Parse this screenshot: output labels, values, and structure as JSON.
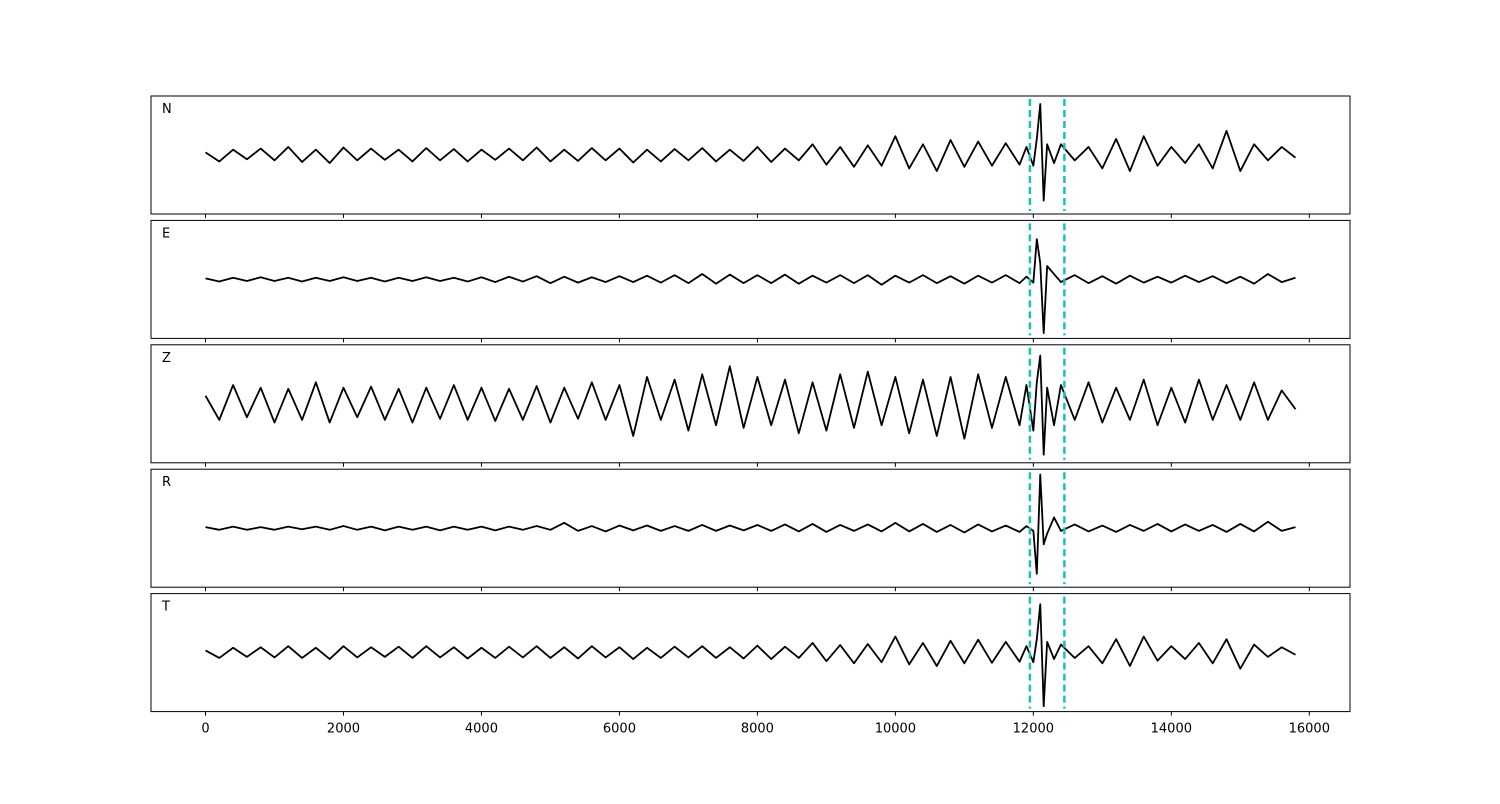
{
  "chart_data": {
    "type": "line",
    "subplots": "stacked",
    "x": [
      0,
      200,
      400,
      600,
      800,
      1000,
      1200,
      1400,
      1600,
      1800,
      2000,
      2200,
      2400,
      2600,
      2800,
      3000,
      3200,
      3400,
      3600,
      3800,
      4000,
      4200,
      4400,
      4600,
      4800,
      5000,
      5200,
      5400,
      5600,
      5800,
      6000,
      6200,
      6400,
      6600,
      6800,
      7000,
      7200,
      7400,
      7600,
      7800,
      8000,
      8200,
      8400,
      8600,
      8800,
      9000,
      9200,
      9400,
      9600,
      9800,
      10000,
      10200,
      10400,
      10600,
      10800,
      11000,
      11200,
      11400,
      11600,
      11800,
      11900,
      12000,
      12050,
      12100,
      12150,
      12200,
      12300,
      12400,
      12600,
      12800,
      13000,
      13200,
      13400,
      13600,
      13800,
      14000,
      14200,
      14400,
      14600,
      14800,
      15000,
      15200,
      15400,
      15600,
      15800
    ],
    "xlim": [
      -790,
      16590
    ],
    "xticks": [
      0,
      2000,
      4000,
      6000,
      8000,
      10000,
      12000,
      14000,
      16000
    ],
    "ylim": [
      -1.1,
      1.1
    ],
    "vlines": [
      11950,
      12450
    ],
    "vline_color": "#17c3b2",
    "series": [
      {
        "name": "N",
        "color": "#000000",
        "values": [
          0.05,
          -0.12,
          0.1,
          -0.08,
          0.12,
          -0.1,
          0.15,
          -0.13,
          0.1,
          -0.15,
          0.14,
          -0.1,
          0.12,
          -0.09,
          0.1,
          -0.12,
          0.13,
          -0.1,
          0.11,
          -0.12,
          0.1,
          -0.09,
          0.12,
          -0.1,
          0.14,
          -0.12,
          0.1,
          -0.11,
          0.13,
          -0.1,
          0.12,
          -0.14,
          0.1,
          -0.12,
          0.11,
          -0.1,
          0.13,
          -0.12,
          0.1,
          -0.11,
          0.15,
          -0.13,
          0.12,
          -0.1,
          0.2,
          -0.18,
          0.15,
          -0.22,
          0.18,
          -0.2,
          0.35,
          -0.25,
          0.2,
          -0.3,
          0.28,
          -0.22,
          0.25,
          -0.2,
          0.22,
          -0.18,
          0.15,
          -0.2,
          0.3,
          0.95,
          -0.85,
          0.2,
          -0.15,
          0.2,
          -0.1,
          0.15,
          -0.25,
          0.3,
          -0.3,
          0.35,
          -0.2,
          0.15,
          -0.15,
          0.2,
          -0.25,
          0.45,
          -0.3,
          0.2,
          -0.1,
          0.15,
          -0.05
        ]
      },
      {
        "name": "E",
        "color": "#000000",
        "values": [
          0.02,
          -0.04,
          0.03,
          -0.03,
          0.04,
          -0.03,
          0.03,
          -0.04,
          0.03,
          -0.03,
          0.04,
          -0.03,
          0.03,
          -0.04,
          0.03,
          -0.03,
          0.04,
          -0.03,
          0.03,
          -0.04,
          0.04,
          -0.05,
          0.05,
          -0.04,
          0.06,
          -0.07,
          0.05,
          -0.06,
          0.04,
          -0.05,
          0.06,
          -0.05,
          0.07,
          -0.06,
          0.08,
          -0.07,
          0.1,
          -0.08,
          0.09,
          -0.07,
          0.08,
          -0.07,
          0.09,
          -0.08,
          0.07,
          -0.06,
          0.08,
          -0.07,
          0.08,
          -0.1,
          0.07,
          -0.06,
          0.08,
          -0.07,
          0.06,
          -0.08,
          0.07,
          -0.06,
          0.08,
          -0.07,
          0.05,
          -0.06,
          0.75,
          0.3,
          -1.0,
          0.25,
          0.1,
          -0.05,
          0.08,
          -0.07,
          0.06,
          -0.08,
          0.07,
          -0.06,
          0.05,
          -0.06,
          0.07,
          -0.05,
          0.06,
          -0.07,
          0.05,
          -0.08,
          0.1,
          -0.05,
          0.03
        ]
      },
      {
        "name": "Z",
        "color": "#000000",
        "values": [
          0.15,
          -0.3,
          0.35,
          -0.25,
          0.3,
          -0.35,
          0.28,
          -0.3,
          0.4,
          -0.35,
          0.3,
          -0.25,
          0.32,
          -0.3,
          0.28,
          -0.35,
          0.3,
          -0.28,
          0.35,
          -0.3,
          0.3,
          -0.32,
          0.28,
          -0.3,
          0.33,
          -0.35,
          0.3,
          -0.28,
          0.4,
          -0.3,
          0.35,
          -0.6,
          0.5,
          -0.3,
          0.45,
          -0.5,
          0.55,
          -0.4,
          0.7,
          -0.45,
          0.5,
          -0.4,
          0.45,
          -0.55,
          0.4,
          -0.5,
          0.55,
          -0.45,
          0.6,
          -0.4,
          0.5,
          -0.55,
          0.45,
          -0.6,
          0.5,
          -0.65,
          0.55,
          -0.45,
          0.5,
          -0.4,
          0.35,
          -0.5,
          0.4,
          0.9,
          -0.95,
          0.3,
          -0.4,
          0.35,
          -0.3,
          0.4,
          -0.35,
          0.3,
          -0.3,
          0.45,
          -0.4,
          0.3,
          -0.35,
          0.45,
          -0.3,
          0.35,
          -0.3,
          0.4,
          -0.3,
          0.25,
          -0.1
        ]
      },
      {
        "name": "R",
        "color": "#000000",
        "values": [
          0.02,
          -0.03,
          0.03,
          -0.03,
          0.02,
          -0.03,
          0.03,
          -0.02,
          0.03,
          -0.03,
          0.04,
          -0.03,
          0.03,
          -0.04,
          0.03,
          -0.03,
          0.03,
          -0.04,
          0.03,
          -0.03,
          0.03,
          -0.04,
          0.03,
          -0.03,
          0.04,
          -0.03,
          0.1,
          -0.05,
          0.04,
          -0.06,
          0.05,
          -0.04,
          0.05,
          -0.05,
          0.04,
          -0.05,
          0.06,
          -0.05,
          0.05,
          -0.04,
          0.06,
          -0.05,
          0.07,
          -0.06,
          0.08,
          -0.07,
          0.06,
          -0.05,
          0.07,
          -0.06,
          0.1,
          -0.06,
          0.08,
          -0.07,
          0.06,
          -0.08,
          0.07,
          -0.06,
          0.05,
          -0.07,
          0.04,
          -0.05,
          -0.85,
          1.0,
          -0.3,
          -0.1,
          0.2,
          -0.05,
          0.07,
          -0.06,
          0.05,
          -0.07,
          0.06,
          -0.05,
          0.08,
          -0.06,
          0.07,
          -0.05,
          0.06,
          -0.07,
          0.08,
          -0.06,
          0.12,
          -0.05,
          0.02
        ]
      },
      {
        "name": "T",
        "color": "#000000",
        "values": [
          0.04,
          -0.1,
          0.09,
          -0.08,
          0.1,
          -0.09,
          0.12,
          -0.1,
          0.09,
          -0.12,
          0.12,
          -0.09,
          0.1,
          -0.08,
          0.11,
          -0.1,
          0.12,
          -0.09,
          0.1,
          -0.11,
          0.09,
          -0.1,
          0.11,
          -0.09,
          0.12,
          -0.1,
          0.1,
          -0.11,
          0.12,
          -0.09,
          0.1,
          -0.12,
          0.09,
          -0.1,
          0.11,
          -0.09,
          0.12,
          -0.1,
          0.1,
          -0.11,
          0.13,
          -0.12,
          0.11,
          -0.1,
          0.18,
          -0.16,
          0.14,
          -0.2,
          0.16,
          -0.18,
          0.3,
          -0.22,
          0.18,
          -0.25,
          0.22,
          -0.2,
          0.24,
          -0.19,
          0.2,
          -0.17,
          0.12,
          -0.18,
          0.25,
          0.9,
          -1.0,
          0.2,
          -0.12,
          0.15,
          -0.1,
          0.12,
          -0.2,
          0.25,
          -0.25,
          0.3,
          -0.15,
          0.12,
          -0.12,
          0.18,
          -0.2,
          0.25,
          -0.3,
          0.15,
          -0.08,
          0.1,
          -0.04
        ]
      }
    ]
  }
}
